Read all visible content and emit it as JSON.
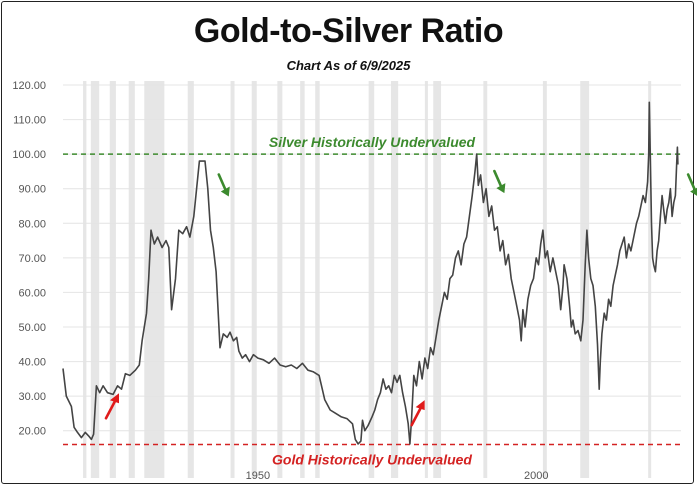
{
  "title": "Gold-to-Silver Ratio",
  "subtitle": "Chart As of 6/9/2025",
  "colors": {
    "line": "#444444",
    "silver_line": "#3c8a2e",
    "gold_line": "#d42222",
    "recession": "#e6e6e6",
    "grid": "#e4e4e4",
    "axis_text": "#555555",
    "arrow_up": "#e01b1b",
    "arrow_down": "#3c8a2e"
  },
  "chart_data": {
    "type": "line",
    "title": "Gold-to-Silver Ratio",
    "subtitle": "Chart As of 6/9/2025",
    "xlim": [
      1915,
      2026
    ],
    "ylim": [
      15,
      120
    ],
    "y_ticks": [
      "20.00",
      "30.00",
      "40.00",
      "50.00",
      "60.00",
      "70.00",
      "80.00",
      "90.00",
      "100.00",
      "110.00",
      "120.00"
    ],
    "x_ticks": [
      "1950",
      "2000"
    ],
    "grid": "horizontal",
    "reference_lines": [
      {
        "label": "Silver Historically Undervalued",
        "value": 100,
        "color": "#3c8a2e",
        "style": "dashed"
      },
      {
        "label": "Gold Historically Undervalued",
        "value": 16,
        "color": "#d42222",
        "style": "dashed"
      }
    ],
    "recession_bands": [
      [
        1918.6,
        1919.2
      ],
      [
        1920.0,
        1921.5
      ],
      [
        1923.4,
        1924.5
      ],
      [
        1926.8,
        1927.9
      ],
      [
        1929.6,
        1933.2
      ],
      [
        1937.4,
        1938.5
      ],
      [
        1945.1,
        1945.8
      ],
      [
        1948.9,
        1949.8
      ],
      [
        1953.5,
        1954.4
      ],
      [
        1957.6,
        1958.4
      ],
      [
        1960.3,
        1961.1
      ],
      [
        1969.9,
        1970.9
      ],
      [
        1973.9,
        1975.2
      ],
      [
        1980.0,
        1980.5
      ],
      [
        1981.5,
        1982.9
      ],
      [
        1990.5,
        1991.2
      ],
      [
        2001.2,
        2001.9
      ],
      [
        2007.9,
        2009.5
      ],
      [
        2020.1,
        2020.4
      ]
    ],
    "series": [
      {
        "values": [
          [
            1915,
            38
          ],
          [
            1915.6,
            30
          ],
          [
            1916.5,
            27
          ],
          [
            1917,
            21
          ],
          [
            1917.6,
            19.5
          ],
          [
            1918.3,
            18
          ],
          [
            1919,
            19.5
          ],
          [
            1919.6,
            18.5
          ],
          [
            1920.1,
            17.5
          ],
          [
            1920.5,
            19
          ],
          [
            1921,
            33
          ],
          [
            1921.6,
            31
          ],
          [
            1922.2,
            33
          ],
          [
            1923,
            31
          ],
          [
            1924,
            30.5
          ],
          [
            1924.8,
            33
          ],
          [
            1925.5,
            32
          ],
          [
            1926.2,
            36.5
          ],
          [
            1927,
            36
          ],
          [
            1928,
            37.5
          ],
          [
            1928.7,
            39
          ],
          [
            1929.2,
            46
          ],
          [
            1930,
            54
          ],
          [
            1930.4,
            64
          ],
          [
            1930.8,
            78
          ],
          [
            1931.4,
            74
          ],
          [
            1932,
            76
          ],
          [
            1932.8,
            73
          ],
          [
            1933.5,
            75
          ],
          [
            1934,
            73
          ],
          [
            1934.5,
            55
          ],
          [
            1935.2,
            64
          ],
          [
            1935.8,
            78
          ],
          [
            1936.5,
            77
          ],
          [
            1937.2,
            79
          ],
          [
            1937.8,
            76
          ],
          [
            1938.5,
            82
          ],
          [
            1939,
            90
          ],
          [
            1939.5,
            98
          ],
          [
            1940.5,
            98
          ],
          [
            1941,
            90
          ],
          [
            1941.5,
            78
          ],
          [
            1942,
            73
          ],
          [
            1942.5,
            66
          ],
          [
            1943.2,
            44
          ],
          [
            1943.8,
            48
          ],
          [
            1944.5,
            47
          ],
          [
            1945,
            48.5
          ],
          [
            1945.6,
            46
          ],
          [
            1946.2,
            47
          ],
          [
            1946.6,
            43
          ],
          [
            1947.2,
            41
          ],
          [
            1947.8,
            42
          ],
          [
            1948.5,
            40
          ],
          [
            1949.2,
            42
          ],
          [
            1950,
            41
          ],
          [
            1951,
            40.5
          ],
          [
            1952,
            39.5
          ],
          [
            1953,
            41
          ],
          [
            1954,
            39
          ],
          [
            1955,
            38.5
          ],
          [
            1956,
            39
          ],
          [
            1957,
            38
          ],
          [
            1958,
            39.5
          ],
          [
            1959,
            37.5
          ],
          [
            1960,
            37
          ],
          [
            1961,
            36
          ],
          [
            1962,
            29
          ],
          [
            1963,
            26
          ],
          [
            1964,
            25
          ],
          [
            1965,
            24
          ],
          [
            1966,
            23.5
          ],
          [
            1967,
            22
          ],
          [
            1967.5,
            17.5
          ],
          [
            1968,
            16.2
          ],
          [
            1968.5,
            17
          ],
          [
            1968.8,
            23
          ],
          [
            1969.2,
            20
          ],
          [
            1969.8,
            21.5
          ],
          [
            1970.5,
            24
          ],
          [
            1971,
            26
          ],
          [
            1971.5,
            29
          ],
          [
            1972,
            31
          ],
          [
            1972.5,
            35
          ],
          [
            1973,
            32
          ],
          [
            1973.5,
            33
          ],
          [
            1974,
            31
          ],
          [
            1974.5,
            36
          ],
          [
            1975,
            34
          ],
          [
            1975.5,
            36
          ],
          [
            1976,
            31
          ],
          [
            1976.5,
            27
          ],
          [
            1977,
            22
          ],
          [
            1977.3,
            16.2
          ],
          [
            1977.6,
            23
          ],
          [
            1978,
            36
          ],
          [
            1978.5,
            33
          ],
          [
            1979,
            40
          ],
          [
            1979.5,
            35
          ],
          [
            1980,
            41
          ],
          [
            1980.5,
            38
          ],
          [
            1981,
            44
          ],
          [
            1981.5,
            42
          ],
          [
            1982,
            47
          ],
          [
            1982.5,
            52
          ],
          [
            1983,
            56
          ],
          [
            1983.5,
            60
          ],
          [
            1984,
            58
          ],
          [
            1984.5,
            64
          ],
          [
            1985,
            65
          ],
          [
            1985.5,
            70
          ],
          [
            1986,
            72
          ],
          [
            1986.5,
            68
          ],
          [
            1987,
            74
          ],
          [
            1987.5,
            76
          ],
          [
            1988,
            82
          ],
          [
            1988.5,
            88
          ],
          [
            1989,
            95
          ],
          [
            1989.3,
            100
          ],
          [
            1989.6,
            91
          ],
          [
            1990,
            94
          ],
          [
            1990.5,
            86
          ],
          [
            1991,
            90
          ],
          [
            1991.5,
            82
          ],
          [
            1992,
            85
          ],
          [
            1992.5,
            78
          ],
          [
            1993,
            79
          ],
          [
            1993.5,
            72
          ],
          [
            1994,
            75
          ],
          [
            1994.5,
            68
          ],
          [
            1995,
            71
          ],
          [
            1995.5,
            64
          ],
          [
            1996,
            60
          ],
          [
            1996.5,
            56
          ],
          [
            1997,
            52
          ],
          [
            1997.3,
            46
          ],
          [
            1997.6,
            55
          ],
          [
            1998,
            50
          ],
          [
            1998.5,
            58
          ],
          [
            1999,
            62
          ],
          [
            1999.5,
            64
          ],
          [
            2000,
            70
          ],
          [
            2000.4,
            68
          ],
          [
            2000.8,
            74
          ],
          [
            2001.2,
            78
          ],
          [
            2001.6,
            70
          ],
          [
            2002,
            72
          ],
          [
            2002.5,
            66
          ],
          [
            2003,
            70
          ],
          [
            2003.5,
            66
          ],
          [
            2004,
            62
          ],
          [
            2004.4,
            55
          ],
          [
            2004.8,
            62
          ],
          [
            2005,
            68
          ],
          [
            2005.5,
            64
          ],
          [
            2006,
            56
          ],
          [
            2006.3,
            50
          ],
          [
            2006.6,
            52
          ],
          [
            2007,
            48
          ],
          [
            2007.5,
            49
          ],
          [
            2008,
            46
          ],
          [
            2008.4,
            52
          ],
          [
            2008.8,
            68
          ],
          [
            2009.1,
            78
          ],
          [
            2009.4,
            70
          ],
          [
            2009.8,
            64
          ],
          [
            2010.2,
            62
          ],
          [
            2010.6,
            56
          ],
          [
            2011,
            45
          ],
          [
            2011.3,
            32
          ],
          [
            2011.5,
            40
          ],
          [
            2011.8,
            48
          ],
          [
            2012.2,
            54
          ],
          [
            2012.6,
            52
          ],
          [
            2013,
            58
          ],
          [
            2013.4,
            56
          ],
          [
            2013.8,
            62
          ],
          [
            2014.2,
            65
          ],
          [
            2014.6,
            68
          ],
          [
            2015,
            72
          ],
          [
            2015.4,
            74
          ],
          [
            2015.8,
            76
          ],
          [
            2016.2,
            70
          ],
          [
            2016.6,
            74
          ],
          [
            2017,
            72
          ],
          [
            2017.5,
            76
          ],
          [
            2018,
            80
          ],
          [
            2018.4,
            82
          ],
          [
            2018.8,
            85
          ],
          [
            2019.2,
            88
          ],
          [
            2019.6,
            86
          ],
          [
            2020,
            92
          ],
          [
            2020.2,
            100
          ],
          [
            2020.3,
            115
          ],
          [
            2020.5,
            98
          ],
          [
            2020.7,
            80
          ],
          [
            2020.9,
            70
          ],
          [
            2021.1,
            68
          ],
          [
            2021.4,
            66
          ],
          [
            2021.7,
            72
          ],
          [
            2022,
            75
          ],
          [
            2022.3,
            82
          ],
          [
            2022.6,
            88
          ],
          [
            2022.9,
            84
          ],
          [
            2023.2,
            80
          ],
          [
            2023.5,
            84
          ],
          [
            2023.8,
            86
          ],
          [
            2024.1,
            90
          ],
          [
            2024.4,
            82
          ],
          [
            2024.7,
            86
          ],
          [
            2025,
            88
          ],
          [
            2025.2,
            96
          ],
          [
            2025.35,
            102
          ],
          [
            2025.44,
            97
          ]
        ]
      }
    ],
    "annotations": [
      {
        "type": "arrow-up",
        "color": "#e01b1b",
        "at": [
          1923.8,
          26.5
        ]
      },
      {
        "type": "arrow-up",
        "color": "#e01b1b",
        "at": [
          1978.7,
          24.5
        ]
      },
      {
        "type": "arrow-down",
        "color": "#3c8a2e",
        "at": [
          1943.7,
          91.5
        ]
      },
      {
        "type": "arrow-down",
        "color": "#3c8a2e",
        "at": [
          1993.2,
          92.5
        ]
      },
      {
        "type": "arrow-down",
        "color": "#3c8a2e",
        "at": [
          2028.0,
          91.5
        ]
      }
    ]
  }
}
